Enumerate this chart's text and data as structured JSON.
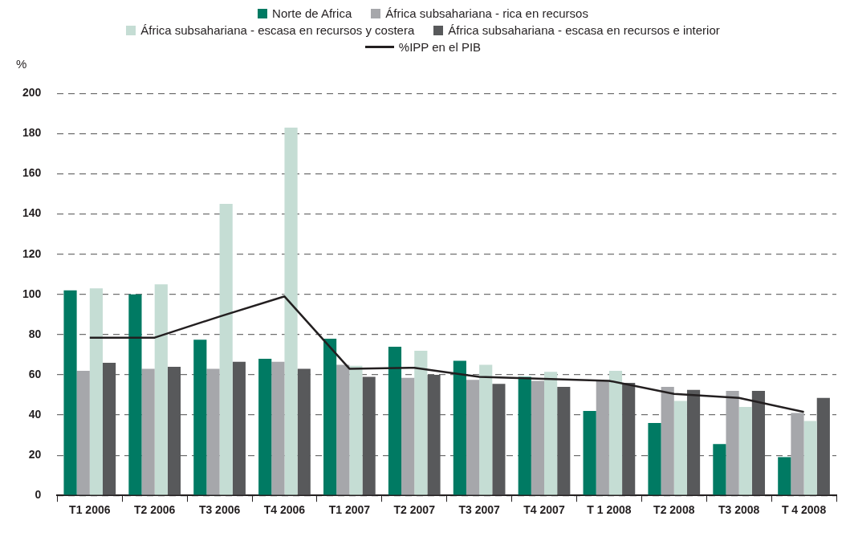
{
  "chart_data": {
    "type": "bar",
    "ylabel": "%",
    "categories": [
      "T1 2006",
      "T2 2006",
      "T3 2006",
      "T4 2006",
      "T1 2007",
      "T2 2007",
      "T3 2007",
      "T4 2007",
      "T 1 2008",
      "T2 2008",
      "T3 2008",
      "T 4 2008"
    ],
    "series": [
      {
        "name": "Norte de Africa",
        "color": "#007a63",
        "values": [
          102,
          100,
          77.5,
          68,
          78,
          74,
          67,
          59,
          42,
          36,
          25.5,
          19
        ]
      },
      {
        "name": "África subsahariana - rica en recursos",
        "color": "#a6a7ab",
        "values": [
          62,
          63,
          63,
          66.5,
          65,
          58.5,
          57.5,
          57,
          57,
          54,
          52,
          41
        ]
      },
      {
        "name": "África subsahariana - escasa en recursos y costera",
        "color": "#c5ddd4",
        "values": [
          103,
          105,
          145,
          183,
          64.5,
          72,
          65,
          61.5,
          62,
          47,
          44,
          37
        ]
      },
      {
        "name": "África subsahariana - escasa en recursos e interior",
        "color": "#58595b",
        "values": [
          66,
          64,
          66.5,
          63,
          59,
          60,
          55.5,
          54,
          56,
          52.5,
          52,
          48.5
        ]
      },
      {
        "name": "%IPP en el PIB",
        "type": "line",
        "color": "#231f20",
        "values": [
          78.5,
          78.5,
          89,
          99,
          63,
          63.5,
          59,
          58,
          57,
          50.5,
          48.5,
          41.5
        ]
      }
    ],
    "ylim": [
      0,
      200
    ],
    "yticks": [
      0,
      20,
      40,
      60,
      80,
      100,
      120,
      140,
      160,
      180,
      200
    ],
    "grid": "y",
    "legend": "top",
    "marker": "none"
  }
}
